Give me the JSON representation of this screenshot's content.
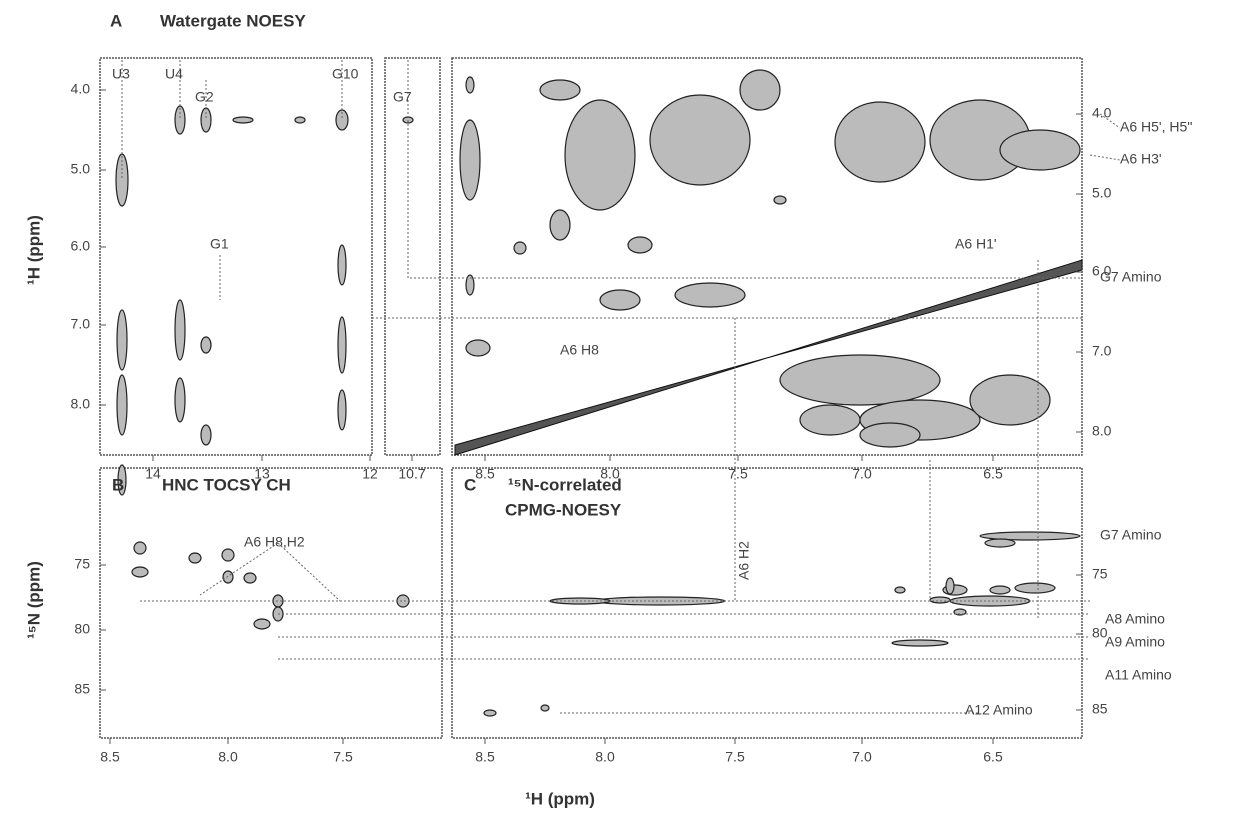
{
  "axis_titles": {
    "top_y": "¹H  (ppm)",
    "bottom_y": "¹⁵N  (ppm)",
    "x": "¹H  (ppm)"
  },
  "panel_a": {
    "letter": "A",
    "title": "Watergate NOESY",
    "x_ticks_left": [
      "14",
      "13",
      "12"
    ],
    "x_ticks_mid": [
      "10.7"
    ],
    "x_ticks_right": [
      "8.5",
      "8.0",
      "7.5",
      "7.0",
      "6.5"
    ],
    "y_ticks_left": [
      "4.0",
      "5.0",
      "6.0",
      "7.0",
      "8.0"
    ],
    "y_ticks_right": [
      "4.0",
      "5.0",
      "6.0",
      "7.0",
      "8.0"
    ],
    "labels": [
      "U3",
      "U4",
      "G2",
      "G10",
      "G1",
      "G7",
      "A6 H5', H5''",
      "A6 H3'",
      "A6 H1'",
      "G7 Amino",
      "A6 H8"
    ]
  },
  "panel_b": {
    "letter": "B",
    "title": "HNC TOCSY CH",
    "x_ticks": [
      "8.5",
      "8.0",
      "7.5"
    ],
    "y_ticks": [
      "75",
      "80",
      "85"
    ],
    "labels": [
      "A6 H8,H2"
    ]
  },
  "panel_c": {
    "letter": "C",
    "title": [
      "¹⁵N-correlated",
      "CPMG-NOESY"
    ],
    "x_ticks": [
      "8.5",
      "8.0",
      "7.5",
      "7.0",
      "6.5"
    ],
    "y_ticks": [
      "75",
      "80",
      "85"
    ],
    "labels": [
      "A6 H2",
      "G7 Amino",
      "A8 Amino",
      "A9 Amino",
      "A11 Amino",
      "A12 Amino"
    ]
  }
}
